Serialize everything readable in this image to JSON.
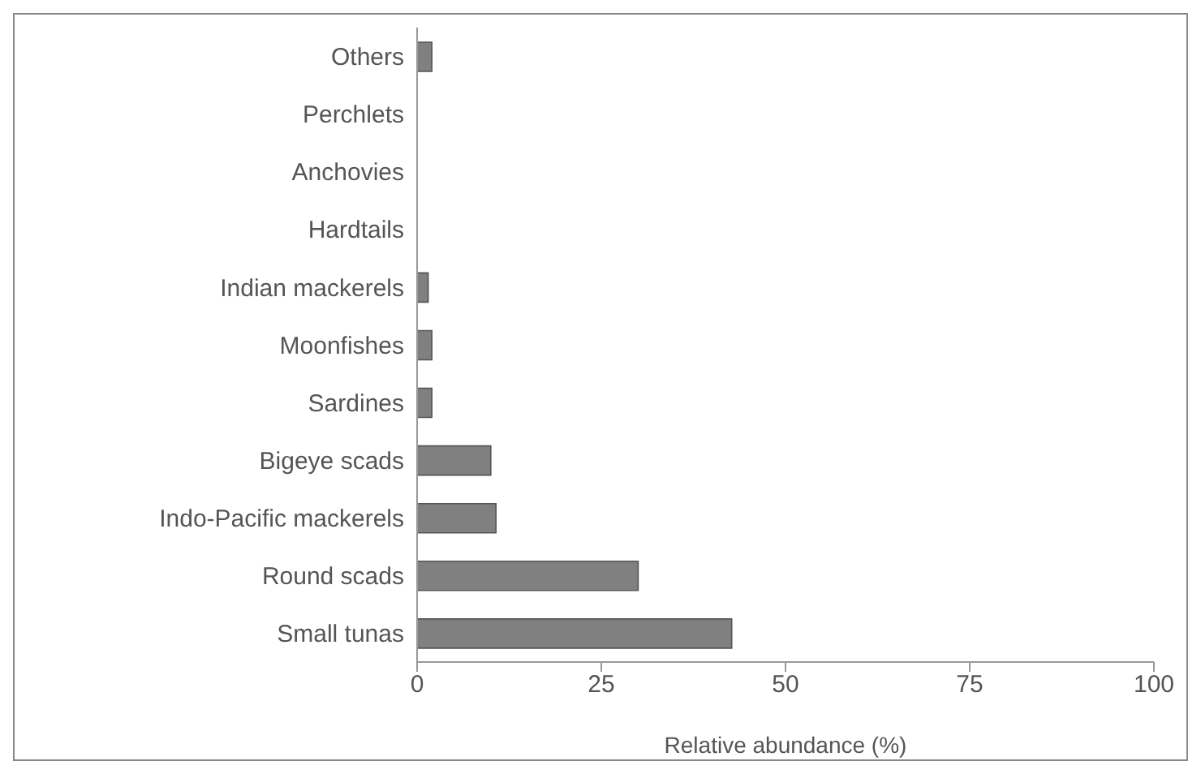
{
  "chart_data": {
    "type": "bar",
    "orientation": "horizontal",
    "xlabel": "Relative abundance (%)",
    "categories": [
      "Others",
      "Perchlets",
      "Anchovies",
      "Hardtails",
      "Indian mackerels",
      "Moonfishes",
      "Sardines",
      "Bigeye scads",
      "Indo-Pacific mackerels",
      "Round scads",
      "Small tunas"
    ],
    "values": [
      2,
      0,
      0,
      0,
      1.5,
      2,
      2,
      10,
      10.7,
      30,
      42.7
    ],
    "color": "#808080",
    "xlim": [
      0,
      100
    ],
    "xticks": [
      0,
      25,
      50,
      75,
      100
    ],
    "grid": false
  }
}
